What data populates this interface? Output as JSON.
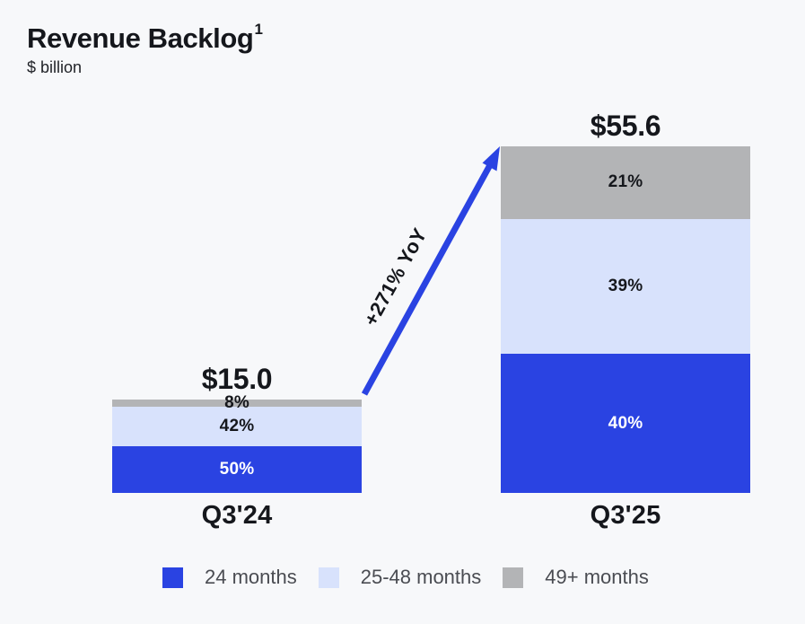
{
  "header": {
    "title": "Revenue Backlog",
    "footnote_marker": "1",
    "subtitle": "$ billion"
  },
  "chart_data": {
    "type": "bar",
    "stacked": true,
    "title": "Revenue Backlog",
    "unit": "$ billion",
    "categories": [
      "Q3'24",
      "Q3'25"
    ],
    "totals": [
      15.0,
      55.6
    ],
    "total_labels": [
      "$15.0",
      "$55.6"
    ],
    "series": [
      {
        "name": "24 months",
        "color": "#2A43E2",
        "label_color": "#FFFFFF",
        "values_pct": [
          50,
          40
        ]
      },
      {
        "name": "25-48 months",
        "color": "#D8E2FC",
        "label_color": "#15171C",
        "values_pct": [
          42,
          39
        ]
      },
      {
        "name": "49+ months",
        "color": "#B3B4B6",
        "label_color": "#15171C",
        "values_pct": [
          8,
          21
        ]
      }
    ],
    "segment_labels": [
      [
        "50%",
        "42%",
        "8%"
      ],
      [
        "40%",
        "39%",
        "21%"
      ]
    ],
    "growth_annotation": "+271% YoY",
    "layout": {
      "legend_position": "bottom",
      "grid": false,
      "axes_hidden": true
    },
    "colors": {
      "background": "#F7F8FA",
      "arrow": "#2A43E2",
      "text": "#15171C",
      "legend_text": "#4A4C52"
    }
  }
}
